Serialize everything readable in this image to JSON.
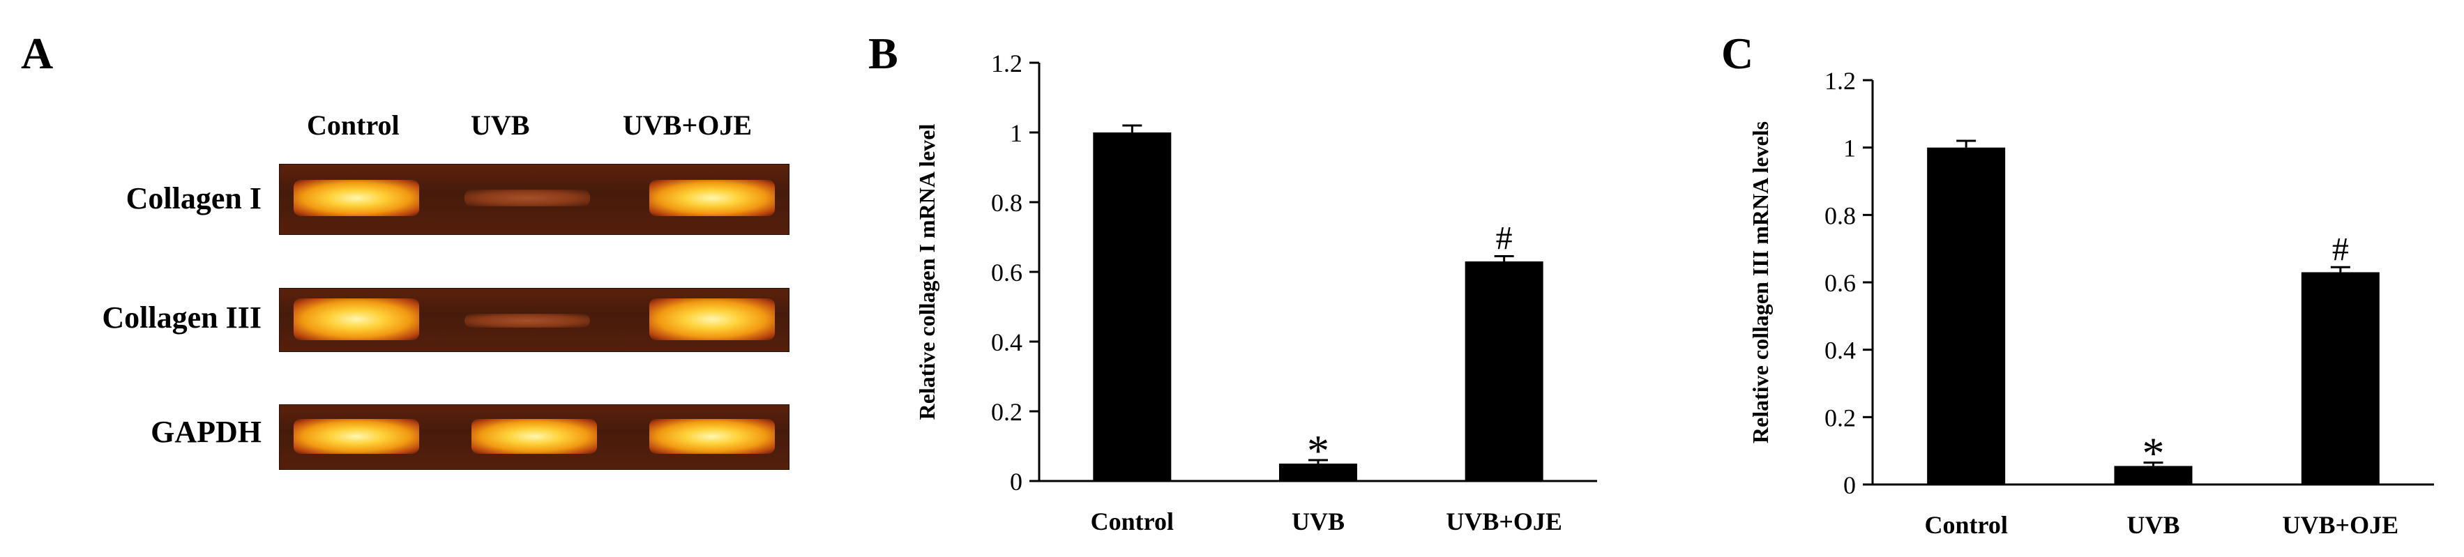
{
  "panel_a": {
    "letter": "A",
    "lanes": [
      "Control",
      "UVB",
      "UVB+OJE"
    ],
    "rows": [
      {
        "label": "Collagen I",
        "bands": [
          "strong",
          "faint",
          "strong"
        ]
      },
      {
        "label": "Collagen III",
        "bands": [
          "strong",
          "faint",
          "strong"
        ]
      },
      {
        "label": "GAPDH",
        "bands": [
          "strong",
          "strong",
          "strong"
        ]
      }
    ]
  },
  "chart_data": [
    {
      "type": "bar",
      "panel": "B",
      "ylabel": "Relative collagen I mRNA level",
      "categories": [
        "Control",
        "UVB",
        "UVB+OJE"
      ],
      "values": [
        1.0,
        0.05,
        0.63
      ],
      "errors": [
        0.02,
        0.01,
        0.015
      ],
      "annotations": [
        "",
        "*",
        "#"
      ],
      "ylim": [
        0,
        1.2
      ],
      "yticks": [
        "0",
        "0.2",
        "0.4",
        "0.6",
        "0.8",
        "1",
        "1.2"
      ],
      "bar_color": "#000000"
    },
    {
      "type": "bar",
      "panel": "C",
      "ylabel": "Relative collagen III mRNA levels",
      "categories": [
        "Control",
        "UVB",
        "UVB+OJE"
      ],
      "values": [
        1.0,
        0.055,
        0.63
      ],
      "errors": [
        0.02,
        0.01,
        0.015
      ],
      "annotations": [
        "",
        "*",
        "#"
      ],
      "ylim": [
        0,
        1.2
      ],
      "yticks": [
        "0",
        "0.2",
        "0.4",
        "0.6",
        "0.8",
        "1",
        "1.2"
      ],
      "bar_color": "#000000"
    }
  ]
}
